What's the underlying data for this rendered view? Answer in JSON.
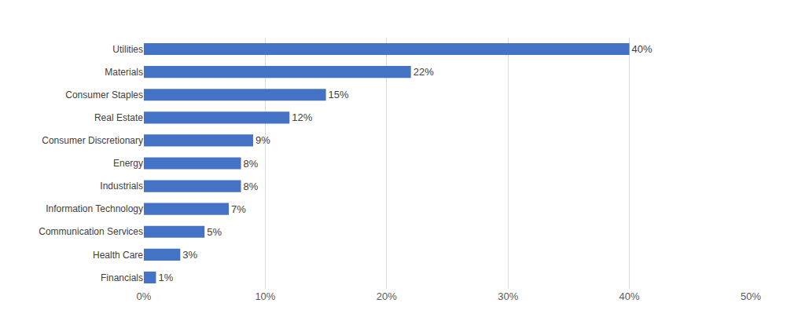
{
  "chart_data": {
    "type": "bar",
    "orientation": "horizontal",
    "categories": [
      "Utilities",
      "Materials",
      "Consumer Staples",
      "Real Estate",
      "Consumer Discretionary",
      "Energy",
      "Industrials",
      "Information Technology",
      "Communication Services",
      "Health Care",
      "Financials"
    ],
    "values": [
      40,
      22,
      15,
      12,
      9,
      8,
      8,
      7,
      5,
      3,
      1
    ],
    "value_labels": [
      "40%",
      "22%",
      "15%",
      "12%",
      "9%",
      "8%",
      "8%",
      "7%",
      "5%",
      "3%",
      "1%"
    ],
    "data_labels": true,
    "color": "#4472c4",
    "xlim": [
      0,
      50
    ],
    "xticks": [
      {
        "value": 0,
        "label": "0%"
      },
      {
        "value": 10,
        "label": "10%"
      },
      {
        "value": 20,
        "label": "20%"
      },
      {
        "value": 30,
        "label": "30%"
      },
      {
        "value": 40,
        "label": "40%"
      },
      {
        "value": 50,
        "label": "50%"
      }
    ],
    "grid": true
  }
}
